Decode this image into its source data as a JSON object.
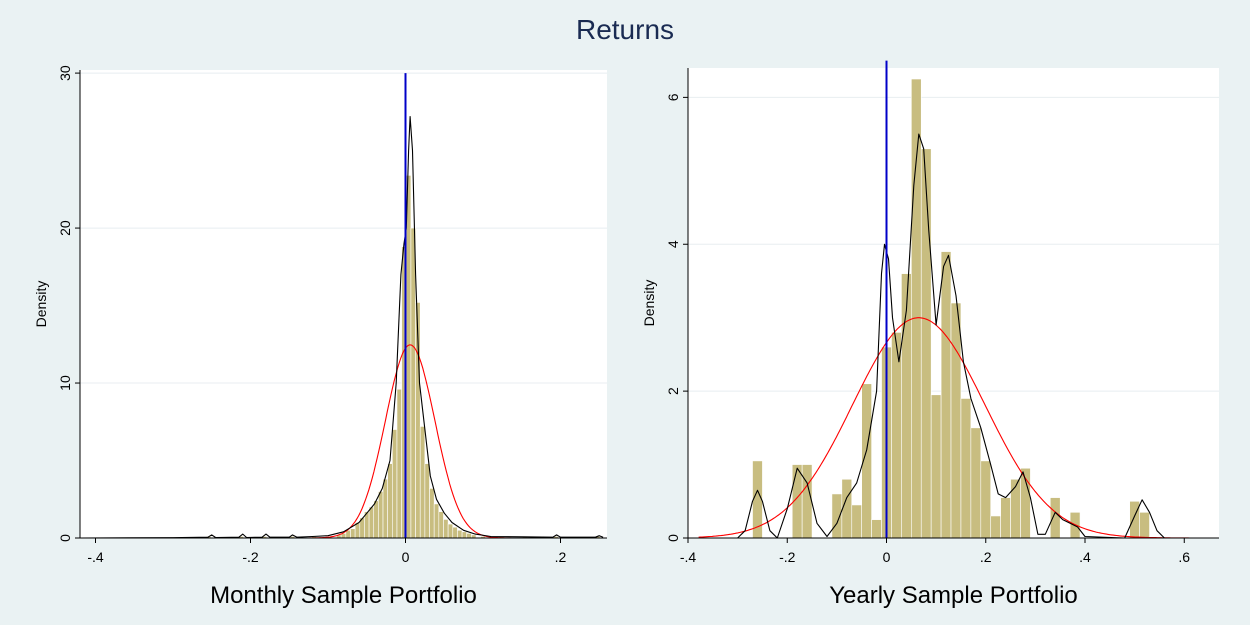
{
  "title": "Returns",
  "colors": {
    "bars": "#c8bd80",
    "bar_edge": "#ffffff",
    "kernel": "#000000",
    "normal": "#ff0000",
    "zero_line": "#0000c8",
    "background": "#eaf2f3",
    "plot_area": "#ffffff"
  },
  "chart_data": [
    {
      "type": "histogram",
      "title": "Monthly Sample Portfolio",
      "xlabel": "Monthly Sample Portfolio",
      "ylabel": "Density",
      "xlim": [
        -0.42,
        0.26
      ],
      "ylim": [
        0,
        30.2
      ],
      "xticks": [
        -0.4,
        -0.2,
        0,
        0.2
      ],
      "xtick_labels": [
        "-.4",
        "-.2",
        "0",
        ".2"
      ],
      "yticks": [
        0,
        10,
        20,
        30
      ],
      "ytick_labels": [
        "0",
        "10",
        "20",
        "30"
      ],
      "grid": true,
      "reference_line_x": 0,
      "bin_width": 0.006,
      "bins": [
        {
          "x": -0.254,
          "density": 0.1
        },
        {
          "x": -0.212,
          "density": 0.1
        },
        {
          "x": -0.182,
          "density": 0.1
        },
        {
          "x": -0.146,
          "density": 0.1
        },
        {
          "x": -0.118,
          "density": 0.1
        },
        {
          "x": -0.098,
          "density": 0.1
        },
        {
          "x": -0.086,
          "density": 0.2
        },
        {
          "x": -0.08,
          "density": 0.3
        },
        {
          "x": -0.074,
          "density": 0.5
        },
        {
          "x": -0.068,
          "density": 0.6
        },
        {
          "x": -0.062,
          "density": 1.0
        },
        {
          "x": -0.056,
          "density": 1.3
        },
        {
          "x": -0.05,
          "density": 1.7
        },
        {
          "x": -0.044,
          "density": 2.0
        },
        {
          "x": -0.038,
          "density": 2.4
        },
        {
          "x": -0.032,
          "density": 3.0
        },
        {
          "x": -0.026,
          "density": 3.8
        },
        {
          "x": -0.02,
          "density": 4.8
        },
        {
          "x": -0.014,
          "density": 7.0
        },
        {
          "x": -0.008,
          "density": 9.6
        },
        {
          "x": -0.002,
          "density": 18.8
        },
        {
          "x": 0.004,
          "density": 23.4
        },
        {
          "x": 0.01,
          "density": 20.0
        },
        {
          "x": 0.016,
          "density": 15.2
        },
        {
          "x": 0.022,
          "density": 7.2
        },
        {
          "x": 0.028,
          "density": 4.8
        },
        {
          "x": 0.034,
          "density": 3.2
        },
        {
          "x": 0.04,
          "density": 2.2
        },
        {
          "x": 0.046,
          "density": 1.7
        },
        {
          "x": 0.052,
          "density": 1.2
        },
        {
          "x": 0.058,
          "density": 0.9
        },
        {
          "x": 0.064,
          "density": 0.7
        },
        {
          "x": 0.07,
          "density": 0.5
        },
        {
          "x": 0.076,
          "density": 0.4
        },
        {
          "x": 0.082,
          "density": 0.3
        },
        {
          "x": 0.088,
          "density": 0.2
        },
        {
          "x": 0.1,
          "density": 0.1
        },
        {
          "x": 0.124,
          "density": 0.1
        },
        {
          "x": 0.154,
          "density": 0.1
        },
        {
          "x": 0.194,
          "density": 0.1
        },
        {
          "x": 0.248,
          "density": 0.1
        }
      ],
      "kernel_density": [
        {
          "x": -0.42,
          "y": 0
        },
        {
          "x": -0.3,
          "y": 0.02
        },
        {
          "x": -0.255,
          "y": 0.05
        },
        {
          "x": -0.25,
          "y": 0.2
        },
        {
          "x": -0.245,
          "y": 0.03
        },
        {
          "x": -0.215,
          "y": 0.05
        },
        {
          "x": -0.21,
          "y": 0.25
        },
        {
          "x": -0.205,
          "y": 0.03
        },
        {
          "x": -0.185,
          "y": 0.05
        },
        {
          "x": -0.18,
          "y": 0.25
        },
        {
          "x": -0.175,
          "y": 0.05
        },
        {
          "x": -0.15,
          "y": 0.05
        },
        {
          "x": -0.146,
          "y": 0.2
        },
        {
          "x": -0.14,
          "y": 0.05
        },
        {
          "x": -0.12,
          "y": 0.1
        },
        {
          "x": -0.1,
          "y": 0.15
        },
        {
          "x": -0.08,
          "y": 0.4
        },
        {
          "x": -0.06,
          "y": 1.0
        },
        {
          "x": -0.05,
          "y": 1.6
        },
        {
          "x": -0.04,
          "y": 2.2
        },
        {
          "x": -0.03,
          "y": 3.2
        },
        {
          "x": -0.02,
          "y": 5.0
        },
        {
          "x": -0.012,
          "y": 10.0
        },
        {
          "x": -0.006,
          "y": 17.0
        },
        {
          "x": -0.002,
          "y": 19.0
        },
        {
          "x": 0.001,
          "y": 20.0
        },
        {
          "x": 0.004,
          "y": 25.0
        },
        {
          "x": 0.006,
          "y": 27.2
        },
        {
          "x": 0.009,
          "y": 25.0
        },
        {
          "x": 0.013,
          "y": 17.0
        },
        {
          "x": 0.018,
          "y": 10.0
        },
        {
          "x": 0.025,
          "y": 7.0
        },
        {
          "x": 0.032,
          "y": 4.0
        },
        {
          "x": 0.04,
          "y": 2.5
        },
        {
          "x": 0.05,
          "y": 1.6
        },
        {
          "x": 0.06,
          "y": 1.0
        },
        {
          "x": 0.075,
          "y": 0.5
        },
        {
          "x": 0.09,
          "y": 0.25
        },
        {
          "x": 0.11,
          "y": 0.1
        },
        {
          "x": 0.15,
          "y": 0.08
        },
        {
          "x": 0.19,
          "y": 0.05
        },
        {
          "x": 0.195,
          "y": 0.2
        },
        {
          "x": 0.2,
          "y": 0.05
        },
        {
          "x": 0.245,
          "y": 0.05
        },
        {
          "x": 0.25,
          "y": 0.15
        },
        {
          "x": 0.255,
          "y": 0.05
        }
      ],
      "normal_density": {
        "mean": 0.006,
        "sd": 0.032
      }
    },
    {
      "type": "histogram",
      "title": "Yearly Sample Portfolio",
      "xlabel": "Yearly Sample Portfolio",
      "ylabel": "Density",
      "xlim": [
        -0.4,
        0.67
      ],
      "ylim": [
        0,
        6.4
      ],
      "xticks": [
        -0.4,
        -0.2,
        0,
        0.2,
        0.4,
        0.6
      ],
      "xtick_labels": [
        "-.4",
        "-.2",
        "0",
        ".2",
        ".4",
        ".6"
      ],
      "yticks": [
        0,
        2,
        4,
        6
      ],
      "ytick_labels": [
        "0",
        "2",
        "4",
        "6"
      ],
      "grid": true,
      "reference_line_x": 0,
      "bin_width": 0.02,
      "bins": [
        {
          "x": -0.26,
          "density": 1.05
        },
        {
          "x": -0.18,
          "density": 1.0
        },
        {
          "x": -0.16,
          "density": 1.0
        },
        {
          "x": -0.1,
          "density": 0.6
        },
        {
          "x": -0.08,
          "density": 0.8
        },
        {
          "x": -0.06,
          "density": 0.45
        },
        {
          "x": -0.04,
          "density": 2.1
        },
        {
          "x": -0.02,
          "density": 0.25
        },
        {
          "x": 0.0,
          "density": 2.6
        },
        {
          "x": 0.02,
          "density": 2.8
        },
        {
          "x": 0.04,
          "density": 3.6
        },
        {
          "x": 0.06,
          "density": 6.25
        },
        {
          "x": 0.08,
          "density": 5.3
        },
        {
          "x": 0.1,
          "density": 1.95
        },
        {
          "x": 0.12,
          "density": 3.9
        },
        {
          "x": 0.14,
          "density": 3.2
        },
        {
          "x": 0.16,
          "density": 1.9
        },
        {
          "x": 0.18,
          "density": 1.5
        },
        {
          "x": 0.2,
          "density": 1.05
        },
        {
          "x": 0.22,
          "density": 0.3
        },
        {
          "x": 0.24,
          "density": 0.55
        },
        {
          "x": 0.26,
          "density": 0.8
        },
        {
          "x": 0.28,
          "density": 0.95
        },
        {
          "x": 0.34,
          "density": 0.55
        },
        {
          "x": 0.38,
          "density": 0.35
        },
        {
          "x": 0.5,
          "density": 0.5
        },
        {
          "x": 0.52,
          "density": 0.35
        }
      ],
      "kernel_density": [
        {
          "x": -0.34,
          "y": 0
        },
        {
          "x": -0.3,
          "y": 0.0
        },
        {
          "x": -0.285,
          "y": 0.1
        },
        {
          "x": -0.27,
          "y": 0.5
        },
        {
          "x": -0.26,
          "y": 0.65
        },
        {
          "x": -0.25,
          "y": 0.5
        },
        {
          "x": -0.235,
          "y": 0.1
        },
        {
          "x": -0.22,
          "y": 0.0
        },
        {
          "x": -0.2,
          "y": 0.4
        },
        {
          "x": -0.18,
          "y": 0.95
        },
        {
          "x": -0.16,
          "y": 0.75
        },
        {
          "x": -0.14,
          "y": 0.2
        },
        {
          "x": -0.12,
          "y": 0.02
        },
        {
          "x": -0.1,
          "y": 0.2
        },
        {
          "x": -0.08,
          "y": 0.55
        },
        {
          "x": -0.06,
          "y": 0.75
        },
        {
          "x": -0.04,
          "y": 1.2
        },
        {
          "x": -0.02,
          "y": 2.0
        },
        {
          "x": -0.01,
          "y": 3.6
        },
        {
          "x": -0.004,
          "y": 4.0
        },
        {
          "x": 0.004,
          "y": 3.8
        },
        {
          "x": 0.012,
          "y": 3.0
        },
        {
          "x": 0.025,
          "y": 2.4
        },
        {
          "x": 0.04,
          "y": 3.1
        },
        {
          "x": 0.055,
          "y": 4.8
        },
        {
          "x": 0.065,
          "y": 5.5
        },
        {
          "x": 0.075,
          "y": 5.3
        },
        {
          "x": 0.085,
          "y": 4.2
        },
        {
          "x": 0.1,
          "y": 2.9
        },
        {
          "x": 0.115,
          "y": 3.7
        },
        {
          "x": 0.125,
          "y": 3.85
        },
        {
          "x": 0.14,
          "y": 3.3
        },
        {
          "x": 0.155,
          "y": 2.4
        },
        {
          "x": 0.17,
          "y": 1.9
        },
        {
          "x": 0.19,
          "y": 1.5
        },
        {
          "x": 0.21,
          "y": 1.0
        },
        {
          "x": 0.225,
          "y": 0.6
        },
        {
          "x": 0.24,
          "y": 0.55
        },
        {
          "x": 0.26,
          "y": 0.7
        },
        {
          "x": 0.275,
          "y": 0.9
        },
        {
          "x": 0.29,
          "y": 0.55
        },
        {
          "x": 0.305,
          "y": 0.05
        },
        {
          "x": 0.32,
          "y": 0.05
        },
        {
          "x": 0.34,
          "y": 0.35
        },
        {
          "x": 0.355,
          "y": 0.25
        },
        {
          "x": 0.37,
          "y": 0.2
        },
        {
          "x": 0.385,
          "y": 0.15
        },
        {
          "x": 0.4,
          "y": 0.02
        },
        {
          "x": 0.48,
          "y": 0.0
        },
        {
          "x": 0.5,
          "y": 0.3
        },
        {
          "x": 0.515,
          "y": 0.52
        },
        {
          "x": 0.53,
          "y": 0.35
        },
        {
          "x": 0.545,
          "y": 0.1
        },
        {
          "x": 0.56,
          "y": 0.0
        },
        {
          "x": 0.64,
          "y": 0.0
        }
      ],
      "normal_density": {
        "mean": 0.065,
        "sd": 0.133
      }
    }
  ]
}
